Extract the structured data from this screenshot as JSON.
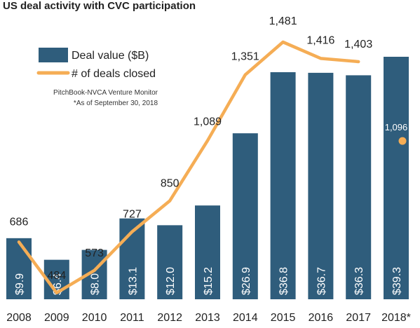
{
  "chart_data": {
    "type": "bar",
    "title": "US deal activity with CVC participation",
    "categories": [
      "2008",
      "2009",
      "2010",
      "2011",
      "2012",
      "2013",
      "2014",
      "2015",
      "2016",
      "2017",
      "2018*"
    ],
    "series": [
      {
        "name": "Deal value ($B)",
        "type": "bar",
        "values": [
          9.9,
          6.4,
          8.0,
          13.1,
          12.0,
          15.2,
          26.9,
          36.8,
          36.7,
          36.3,
          39.3
        ],
        "labels": [
          "$9.9",
          "$6.4",
          "$8.0",
          "$13.1",
          "$12.0",
          "$15.2",
          "$26.9",
          "$36.8",
          "$36.7",
          "$36.3",
          "$39.3"
        ],
        "color": "#2f5d7c"
      },
      {
        "name": "# of deals closed",
        "type": "line",
        "values": [
          686,
          484,
          573,
          727,
          850,
          1089,
          1351,
          1481,
          1416,
          1403,
          1096
        ],
        "labels": [
          "686",
          "484",
          "573",
          "727",
          "850",
          "1,089",
          "1,351",
          "1,481",
          "1,416",
          "1,403",
          "1,096"
        ],
        "color": "#f5ad55",
        "last_point_marker_only": true
      }
    ],
    "bar_ylim": [
      0,
      45
    ],
    "line_ylim": [
      0,
      1600
    ],
    "legend_position": "top-left",
    "source_note": "PitchBook-NVCA Venture Monitor",
    "footnote": "*As of September 30, 2018",
    "gridlines": false
  }
}
